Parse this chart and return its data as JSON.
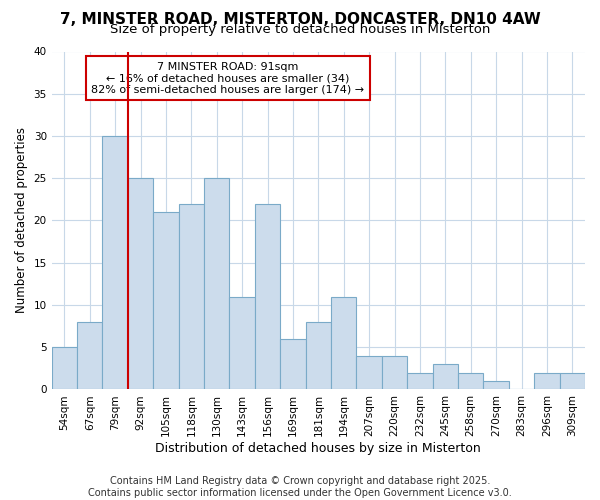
{
  "title": "7, MINSTER ROAD, MISTERTON, DONCASTER, DN10 4AW",
  "subtitle": "Size of property relative to detached houses in Misterton",
  "xlabel": "Distribution of detached houses by size in Misterton",
  "ylabel": "Number of detached properties",
  "bar_labels": [
    "54sqm",
    "67sqm",
    "79sqm",
    "92sqm",
    "105sqm",
    "118sqm",
    "130sqm",
    "143sqm",
    "156sqm",
    "169sqm",
    "181sqm",
    "194sqm",
    "207sqm",
    "220sqm",
    "232sqm",
    "245sqm",
    "258sqm",
    "270sqm",
    "283sqm",
    "296sqm",
    "309sqm"
  ],
  "bar_values": [
    5,
    8,
    30,
    25,
    21,
    22,
    25,
    11,
    22,
    6,
    8,
    11,
    4,
    4,
    2,
    3,
    2,
    1,
    0,
    2,
    2
  ],
  "bar_color": "#ccdcec",
  "bar_edge_color": "#7aaac8",
  "vline_index": 3,
  "vline_color": "#cc0000",
  "annotation_text": "7 MINSTER ROAD: 91sqm\n← 16% of detached houses are smaller (34)\n82% of semi-detached houses are larger (174) →",
  "annotation_box_color": "#ffffff",
  "annotation_box_edge": "#cc0000",
  "ylim": [
    0,
    40
  ],
  "yticks": [
    0,
    5,
    10,
    15,
    20,
    25,
    30,
    35,
    40
  ],
  "footer": "Contains HM Land Registry data © Crown copyright and database right 2025.\nContains public sector information licensed under the Open Government Licence v3.0.",
  "bg_color": "#ffffff",
  "plot_bg_color": "#ffffff",
  "grid_color": "#c8d8e8",
  "title_fontsize": 11,
  "subtitle_fontsize": 9.5,
  "xlabel_fontsize": 9,
  "ylabel_fontsize": 8.5,
  "tick_fontsize": 7.5,
  "footer_fontsize": 7,
  "annot_fontsize": 8
}
